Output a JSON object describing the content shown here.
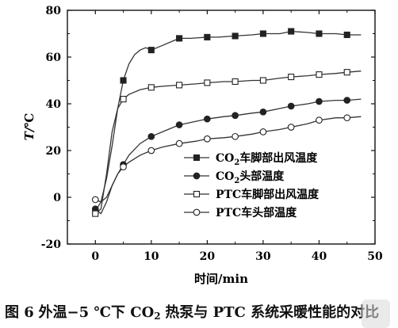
{
  "chart_data": {
    "type": "line",
    "xlabel": "时间/min",
    "ylabel_main": "T/",
    "ylabel_unit": "℃",
    "xlim": [
      -5,
      50
    ],
    "ylim": [
      -20,
      80
    ],
    "xticks": [
      "0",
      "10",
      "20",
      "30",
      "40",
      "50"
    ],
    "yticks": [
      "-20",
      "0",
      "20",
      "40",
      "60",
      "80"
    ],
    "xtick_values": [
      0,
      10,
      20,
      30,
      40,
      50
    ],
    "ytick_values": [
      -20,
      0,
      20,
      40,
      60,
      80
    ],
    "grid": false,
    "legend_position": "lower-right",
    "series": [
      {
        "name": "CO₂车脚部出风温度",
        "name_parts": [
          "CO",
          "2",
          "车脚部出风温度"
        ],
        "marker": "filled-square",
        "color": "#333333",
        "x": [
          0,
          1,
          2,
          3,
          4,
          5,
          6,
          7,
          8,
          9,
          10,
          12,
          14,
          15,
          17,
          20,
          22,
          25,
          28,
          30,
          33,
          35,
          38,
          40,
          43,
          45,
          47.5
        ],
        "y": [
          -6,
          -2,
          8,
          22,
          38,
          50,
          57,
          61,
          63,
          64,
          63,
          65,
          67,
          68,
          68,
          68.5,
          68.5,
          69,
          69.5,
          70,
          70,
          71,
          70.5,
          70,
          70,
          69.5,
          69.5
        ],
        "markers_x": [
          0,
          5,
          10,
          15,
          20,
          25,
          30,
          35,
          40,
          45
        ],
        "markers_y": [
          -6,
          50,
          63,
          68,
          68.5,
          69,
          70,
          71,
          70,
          69.5
        ]
      },
      {
        "name": "CO₂头部温度",
        "name_parts": [
          "CO",
          "2",
          "头部温度"
        ],
        "marker": "filled-circle",
        "color": "#333333",
        "x": [
          0,
          1,
          2,
          3,
          4,
          5,
          6,
          8,
          10,
          12,
          15,
          18,
          20,
          23,
          25,
          28,
          30,
          33,
          35,
          38,
          40,
          43,
          45,
          47.5
        ],
        "y": [
          -5,
          -7,
          -2,
          5,
          10,
          14,
          18,
          23,
          26,
          28,
          31,
          32.5,
          33.5,
          34.5,
          35,
          36,
          36.5,
          38,
          39,
          40,
          41,
          41.5,
          41.5,
          42
        ],
        "markers_x": [
          0,
          5,
          10,
          15,
          20,
          25,
          30,
          35,
          40,
          45
        ],
        "markers_y": [
          -5,
          14,
          26,
          31,
          33.5,
          35,
          36.5,
          39,
          41,
          41.5
        ]
      },
      {
        "name": "PTC车脚部出风温度",
        "name_parts": [
          "PTC",
          "",
          "车脚部出风温度"
        ],
        "marker": "open-square",
        "color": "#333333",
        "x": [
          0,
          1,
          2,
          3,
          4,
          5,
          6,
          8,
          10,
          12,
          15,
          18,
          20,
          23,
          25,
          28,
          30,
          33,
          35,
          38,
          40,
          43,
          45,
          47.5
        ],
        "y": [
          -7,
          -5,
          10,
          28,
          38,
          42,
          44,
          46,
          47,
          47.5,
          48,
          48.5,
          49,
          49.5,
          49.5,
          50,
          50,
          51,
          51.5,
          52,
          52.5,
          53,
          53.5,
          54
        ],
        "markers_x": [
          0,
          5,
          10,
          15,
          20,
          25,
          30,
          35,
          40,
          45
        ],
        "markers_y": [
          -7,
          42,
          47,
          48,
          49,
          49.5,
          50,
          51.5,
          52.5,
          53.5
        ]
      },
      {
        "name": "PTC车头部温度",
        "name_parts": [
          "PTC",
          "",
          "车头部温度"
        ],
        "marker": "open-circle",
        "color": "#333333",
        "x": [
          0,
          1,
          2,
          3,
          4,
          5,
          6,
          8,
          10,
          12,
          15,
          18,
          20,
          23,
          25,
          28,
          30,
          33,
          35,
          38,
          40,
          43,
          45,
          47.5
        ],
        "y": [
          -1,
          -2,
          0,
          5,
          10,
          13,
          15,
          18,
          20,
          21.5,
          23,
          24,
          25,
          25.5,
          26,
          27,
          28,
          29,
          30,
          31.5,
          33,
          34,
          34,
          34.5
        ],
        "markers_x": [
          0,
          5,
          10,
          15,
          20,
          25,
          30,
          35,
          40,
          45
        ],
        "markers_y": [
          -1,
          13,
          20,
          23,
          25,
          26,
          28,
          30,
          33,
          34
        ]
      }
    ]
  },
  "caption": {
    "number": "图 6",
    "text_before_sub": "外温−5 ℃下 CO",
    "sub": "2",
    "text_after_sub": "热泵与 PTC 系统采暖性能的对比"
  }
}
